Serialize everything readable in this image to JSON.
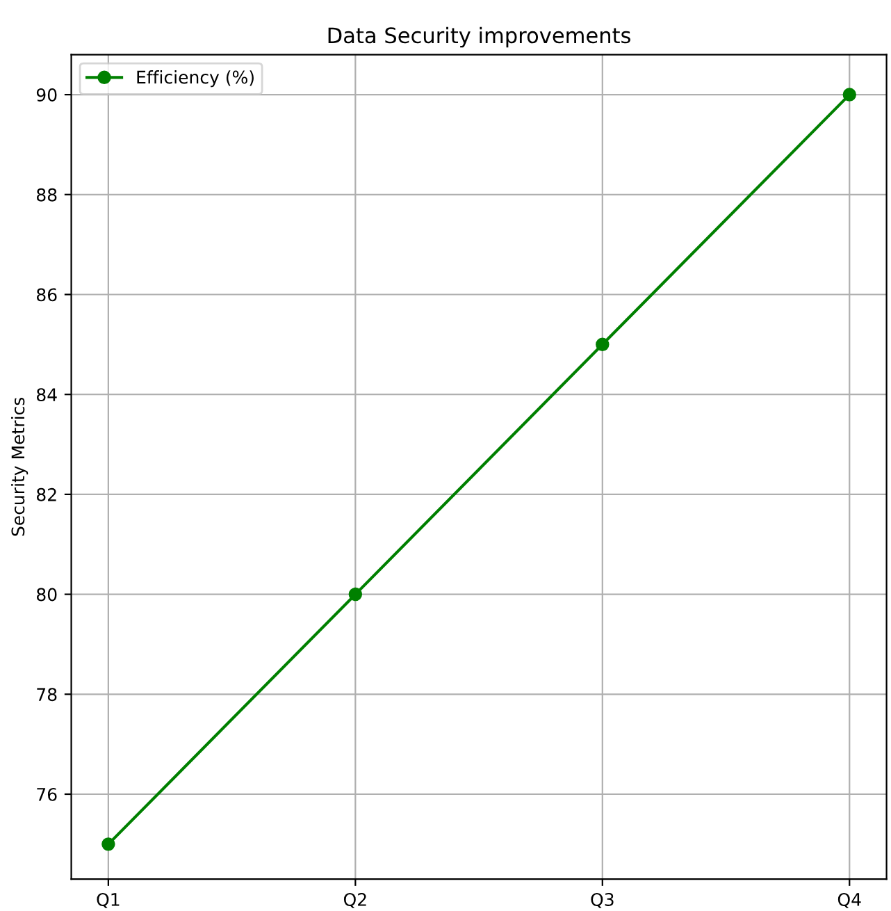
{
  "chart_data": {
    "type": "line",
    "title": "Data Security improvements",
    "ylabel": "Security Metrics",
    "categories": [
      "Q1",
      "Q2",
      "Q3",
      "Q4"
    ],
    "series": [
      {
        "name": "Efficiency (%)",
        "color": "#008000",
        "values": [
          75,
          80,
          85,
          90
        ]
      }
    ],
    "ylim": [
      74.3,
      90.8
    ],
    "yticks": [
      76,
      78,
      80,
      82,
      84,
      86,
      88,
      90
    ],
    "grid": true,
    "legend": "top left",
    "marker": "circle",
    "line_style": "solid"
  }
}
